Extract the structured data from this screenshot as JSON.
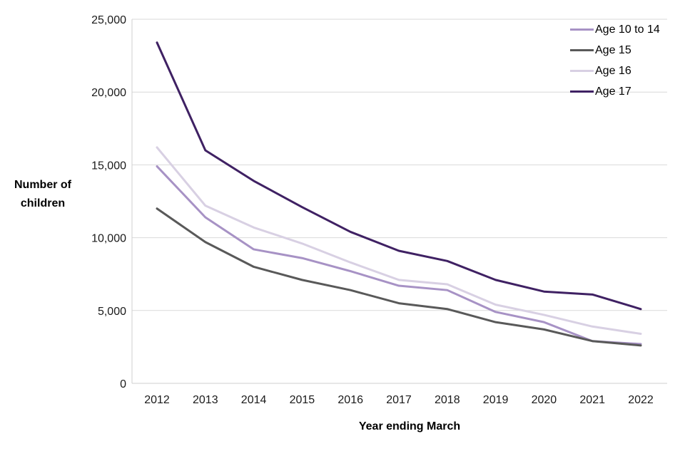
{
  "chart_data": {
    "type": "line",
    "x": [
      2012,
      2013,
      2014,
      2015,
      2016,
      2017,
      2018,
      2019,
      2020,
      2021,
      2022
    ],
    "series": [
      {
        "name": "Age 10 to 14",
        "color": "#A792C5",
        "values": [
          14900,
          11400,
          9200,
          8600,
          7700,
          6700,
          6400,
          4900,
          4200,
          2900,
          2700
        ]
      },
      {
        "name": "Age 15",
        "color": "#595959",
        "values": [
          12000,
          9700,
          8000,
          7100,
          6400,
          5500,
          5100,
          4200,
          3700,
          2900,
          2600
        ]
      },
      {
        "name": "Age 16",
        "color": "#D8D0E3",
        "values": [
          16200,
          12200,
          10700,
          9600,
          8300,
          7100,
          6800,
          5400,
          4700,
          3900,
          3400
        ]
      },
      {
        "name": "Age 17",
        "color": "#3F2163",
        "values": [
          23400,
          16000,
          13900,
          12100,
          10400,
          9100,
          8400,
          7100,
          6300,
          6100,
          5100
        ]
      }
    ],
    "title": "",
    "xlabel": "Year ending March",
    "ylabel": "Number of children",
    "ylim": [
      0,
      25000
    ],
    "ytick_step": 5000,
    "grid": true,
    "legend_position": "top-right"
  },
  "colors": {
    "gridline": "#D9D9D9",
    "axis_line": "#CFCFCF",
    "tick_text": "#1a1a1a"
  }
}
